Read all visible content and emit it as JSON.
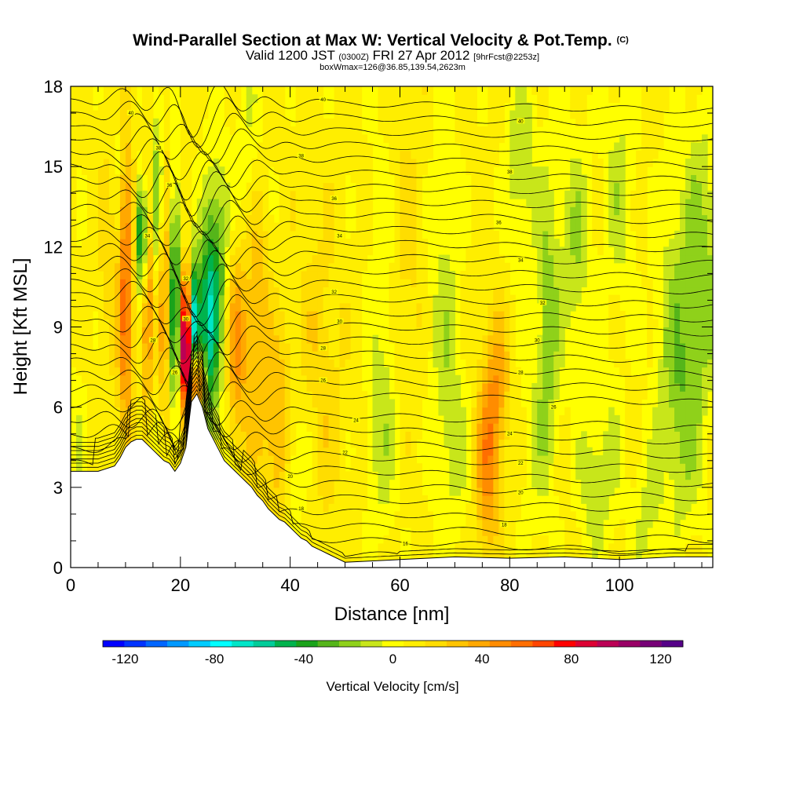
{
  "chart_data": {
    "type": "heatmap",
    "title": "Wind-Parallel Section at Max W: Vertical Velocity & Pot.Temp.",
    "title_mark": "(C)",
    "subtitle": {
      "prefix": "Valid 1200 JST",
      "utc": "(0300Z)",
      "date": "FRI 27 Apr 2012",
      "forecast": "[9hrFcst@2253z]"
    },
    "subtitle2": "boxWmax=126@36.85,139.54,2623m",
    "xlabel": "Distance [nm]",
    "ylabel": "Height [Kft MSL]",
    "xlim": [
      0,
      117
    ],
    "ylim": [
      0,
      18
    ],
    "x_ticks": [
      0,
      20,
      40,
      60,
      80,
      100
    ],
    "y_ticks": [
      0,
      3,
      6,
      9,
      12,
      15,
      18
    ],
    "colorbar": {
      "label": "Vertical Velocity [cm/s]",
      "ticks": [
        -120,
        -80,
        -40,
        0,
        40,
        80,
        120
      ],
      "range": [
        -130,
        130
      ],
      "colors": [
        "#0000ff",
        "#0033ff",
        "#0066ff",
        "#0099ff",
        "#00ccff",
        "#00ffff",
        "#00e6c8",
        "#00cc99",
        "#00b34d",
        "#1aa31a",
        "#55b51a",
        "#8fd11a",
        "#c8e61a",
        "#ffff00",
        "#ffee00",
        "#ffdd00",
        "#ffc400",
        "#ffa800",
        "#ff8c00",
        "#ff6e00",
        "#ff4500",
        "#ff0000",
        "#dd0033",
        "#bb0055",
        "#990066",
        "#770077",
        "#550088"
      ]
    },
    "terrain": [
      [
        0,
        3.6
      ],
      [
        5,
        3.6
      ],
      [
        8,
        3.8
      ],
      [
        9,
        4.1
      ],
      [
        10,
        4.5
      ],
      [
        11,
        4.7
      ],
      [
        12,
        4.8
      ],
      [
        13,
        4.8
      ],
      [
        14,
        4.6
      ],
      [
        15,
        4.4
      ],
      [
        16,
        4.2
      ],
      [
        17,
        4.0
      ],
      [
        18,
        3.9
      ],
      [
        19,
        3.6
      ],
      [
        20,
        3.9
      ],
      [
        21,
        4.5
      ],
      [
        22,
        6.2
      ],
      [
        23,
        6.5
      ],
      [
        24,
        6.0
      ],
      [
        25,
        5.2
      ],
      [
        26,
        4.8
      ],
      [
        27,
        4.4
      ],
      [
        28,
        4.0
      ],
      [
        29,
        3.8
      ],
      [
        30,
        3.6
      ],
      [
        31,
        3.4
      ],
      [
        32,
        3.2
      ],
      [
        33,
        3.0
      ],
      [
        34,
        2.7
      ],
      [
        35,
        2.5
      ],
      [
        36,
        2.2
      ],
      [
        37,
        2.0
      ],
      [
        38,
        1.8
      ],
      [
        39,
        1.7
      ],
      [
        40,
        1.5
      ],
      [
        41,
        1.3
      ],
      [
        42,
        1.1
      ],
      [
        43,
        1.0
      ],
      [
        44,
        0.8
      ],
      [
        45,
        0.7
      ],
      [
        46,
        0.6
      ],
      [
        47,
        0.5
      ],
      [
        48,
        0.4
      ],
      [
        49,
        0.3
      ],
      [
        50,
        0.2
      ],
      [
        60,
        0.3
      ],
      [
        70,
        0.4
      ],
      [
        80,
        0.35
      ],
      [
        90,
        0.4
      ],
      [
        100,
        0.3
      ],
      [
        110,
        0.4
      ],
      [
        117,
        0.4
      ]
    ],
    "updrafts": [
      {
        "x": 21,
        "y": 8.5,
        "w": 120,
        "sx": 0.8,
        "sy": 1.8
      },
      {
        "x": 23,
        "y": 7.0,
        "w": 80,
        "sx": 1.0,
        "sy": 0.8
      },
      {
        "x": 10,
        "y": 10.5,
        "w": 50,
        "sx": 0.9,
        "sy": 4.5
      },
      {
        "x": 14,
        "y": 10.0,
        "w": 40,
        "sx": 0.9,
        "sy": 4.0
      },
      {
        "x": 17,
        "y": 11.0,
        "w": 45,
        "sx": 0.8,
        "sy": 4.0
      },
      {
        "x": 30,
        "y": 8.0,
        "w": 40,
        "sx": 1.5,
        "sy": 3.0
      },
      {
        "x": 34,
        "y": 10.0,
        "w": 30,
        "sx": 1.5,
        "sy": 4.0
      },
      {
        "x": 38,
        "y": 5.0,
        "w": 30,
        "sx": 1.8,
        "sy": 2.5
      },
      {
        "x": 76,
        "y": 4.0,
        "w": 40,
        "sx": 1.5,
        "sy": 2.5
      },
      {
        "x": 78,
        "y": 7.0,
        "w": 25,
        "sx": 1.5,
        "sy": 2.0
      },
      {
        "x": 45,
        "y": 7.0,
        "w": 15,
        "sx": 3.0,
        "sy": 4.0
      },
      {
        "x": 60,
        "y": 12.0,
        "w": 12,
        "sx": 3.0,
        "sy": 4.0
      },
      {
        "x": 7,
        "y": 14.0,
        "w": 20,
        "sx": 1.2,
        "sy": 4.0
      }
    ],
    "downdrafts": [
      {
        "x": 22.5,
        "y": 9.0,
        "w": -100,
        "sx": 0.7,
        "sy": 1.6
      },
      {
        "x": 13,
        "y": 12.5,
        "w": -85,
        "sx": 0.6,
        "sy": 1.5
      },
      {
        "x": 19,
        "y": 10.0,
        "w": -60,
        "sx": 0.8,
        "sy": 3.0
      },
      {
        "x": 25,
        "y": 9.0,
        "w": -55,
        "sx": 1.2,
        "sy": 3.0
      },
      {
        "x": 16,
        "y": 14.0,
        "w": -40,
        "sx": 1.0,
        "sy": 3.0
      },
      {
        "x": 27,
        "y": 11.0,
        "w": -35,
        "sx": 1.5,
        "sy": 3.0
      },
      {
        "x": 8,
        "y": 16.0,
        "w": -20,
        "sx": 1.5,
        "sy": 2.5
      },
      {
        "x": 87,
        "y": 9.0,
        "w": -28,
        "sx": 1.5,
        "sy": 4.0
      },
      {
        "x": 92,
        "y": 12.0,
        "w": -22,
        "sx": 2.0,
        "sy": 3.0
      },
      {
        "x": 110,
        "y": 8.0,
        "w": -25,
        "sx": 2.5,
        "sy": 4.0
      },
      {
        "x": 115,
        "y": 11.0,
        "w": -28,
        "sx": 2.5,
        "sy": 4.0
      },
      {
        "x": 57,
        "y": 10.0,
        "w": -18,
        "sx": 2.0,
        "sy": 5.0
      },
      {
        "x": 68,
        "y": 9.0,
        "w": -18,
        "sx": 2.0,
        "sy": 5.0
      },
      {
        "x": 82,
        "y": 15.0,
        "w": -20,
        "sx": 2.0,
        "sy": 3.0
      },
      {
        "x": 100,
        "y": 14.0,
        "w": -18,
        "sx": 2.0,
        "sy": 3.0
      },
      {
        "x": 33,
        "y": 15.0,
        "w": -18,
        "sx": 2.0,
        "sy": 3.0
      },
      {
        "x": 40,
        "y": 4.0,
        "w": -18,
        "sx": 1.5,
        "sy": 1.5
      },
      {
        "x": 95,
        "y": 3.0,
        "w": -18,
        "sx": 2.0,
        "sy": 2.0
      },
      {
        "x": 105,
        "y": 2.0,
        "w": -15,
        "sx": 2.0,
        "sy": 2.0
      }
    ],
    "isentropes": {
      "count": 34,
      "base_height": 0.4,
      "spacing": 0.52
    },
    "contour_labels": [
      {
        "x": 11,
        "y": 17.0,
        "text": "40"
      },
      {
        "x": 46,
        "y": 17.5,
        "text": "40"
      },
      {
        "x": 82,
        "y": 16.7,
        "text": "40"
      },
      {
        "x": 16,
        "y": 15.7,
        "text": "38"
      },
      {
        "x": 42,
        "y": 15.4,
        "text": "38"
      },
      {
        "x": 80,
        "y": 14.8,
        "text": "38"
      },
      {
        "x": 18,
        "y": 14.3,
        "text": "36"
      },
      {
        "x": 48,
        "y": 13.8,
        "text": "36"
      },
      {
        "x": 78,
        "y": 12.9,
        "text": "36"
      },
      {
        "x": 14,
        "y": 12.4,
        "text": "34"
      },
      {
        "x": 49,
        "y": 12.4,
        "text": "34"
      },
      {
        "x": 82,
        "y": 11.5,
        "text": "34"
      },
      {
        "x": 21,
        "y": 10.8,
        "text": "32"
      },
      {
        "x": 48,
        "y": 10.3,
        "text": "32"
      },
      {
        "x": 86,
        "y": 9.9,
        "text": "32"
      },
      {
        "x": 21,
        "y": 9.3,
        "text": "30"
      },
      {
        "x": 49,
        "y": 9.2,
        "text": "30"
      },
      {
        "x": 85,
        "y": 8.5,
        "text": "30"
      },
      {
        "x": 15,
        "y": 8.5,
        "text": "28"
      },
      {
        "x": 46,
        "y": 8.2,
        "text": "28"
      },
      {
        "x": 82,
        "y": 7.3,
        "text": "28"
      },
      {
        "x": 19,
        "y": 7.3,
        "text": "26"
      },
      {
        "x": 46,
        "y": 7.0,
        "text": "26"
      },
      {
        "x": 88,
        "y": 6.0,
        "text": "26"
      },
      {
        "x": 52,
        "y": 5.5,
        "text": "24"
      },
      {
        "x": 80,
        "y": 5.0,
        "text": "24"
      },
      {
        "x": 50,
        "y": 4.3,
        "text": "22"
      },
      {
        "x": 82,
        "y": 3.9,
        "text": "22"
      },
      {
        "x": 40,
        "y": 3.4,
        "text": "20"
      },
      {
        "x": 82,
        "y": 2.8,
        "text": "20"
      },
      {
        "x": 42,
        "y": 2.2,
        "text": "18"
      },
      {
        "x": 79,
        "y": 1.6,
        "text": "18"
      },
      {
        "x": 61,
        "y": 0.9,
        "text": "16"
      }
    ]
  }
}
